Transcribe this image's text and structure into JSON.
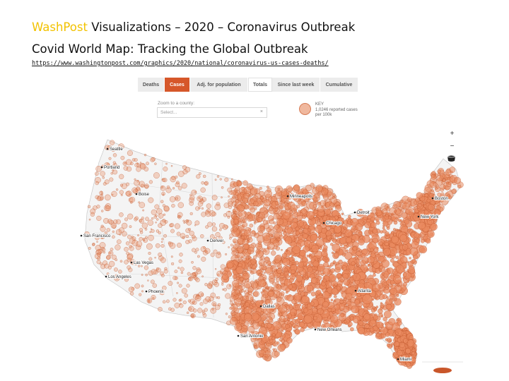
{
  "header": {
    "brand": "WashPost",
    "title_rest": " Visualizations – 2020 – Coronavirus Outbreak",
    "subtitle": "Covid World Map: Tracking the Global Outbreak",
    "url": "https://www.washingtonpost.com/graphics/2020/national/coronavirus-us-cases-deaths/"
  },
  "tabs": [
    {
      "label": "Deaths"
    },
    {
      "label": "Cases"
    },
    {
      "label": "Adj. for population"
    },
    {
      "label": "Totals"
    },
    {
      "label": "Since last week"
    },
    {
      "label": "Cumulative"
    }
  ],
  "zoom": {
    "label": "Zoom to a county:",
    "placeholder": "Select..."
  },
  "key": {
    "title": "KEY",
    "line1": "1,0246 reported cases",
    "line2": "per 100k"
  },
  "controls": {
    "zoom_in": "+",
    "zoom_out": "−"
  },
  "colors": {
    "accent": "#d6572a",
    "bubble_fill": "#e98a5f",
    "bubble_stroke": "#b84a1e",
    "brand": "#f2c200"
  },
  "cities": [
    {
      "name": "Seattle"
    },
    {
      "name": "Portland"
    },
    {
      "name": "Boise"
    },
    {
      "name": "San Francisco"
    },
    {
      "name": "Las Vegas"
    },
    {
      "name": "Los Angeles"
    },
    {
      "name": "Phoenix"
    },
    {
      "name": "Denver"
    },
    {
      "name": "Minneapolis"
    },
    {
      "name": "Chicago"
    },
    {
      "name": "Detroit"
    },
    {
      "name": "Boston"
    },
    {
      "name": "New York"
    },
    {
      "name": "Atlanta"
    },
    {
      "name": "Dallas"
    },
    {
      "name": "San Antonio"
    },
    {
      "name": "New Orleans"
    },
    {
      "name": "Miami"
    }
  ]
}
